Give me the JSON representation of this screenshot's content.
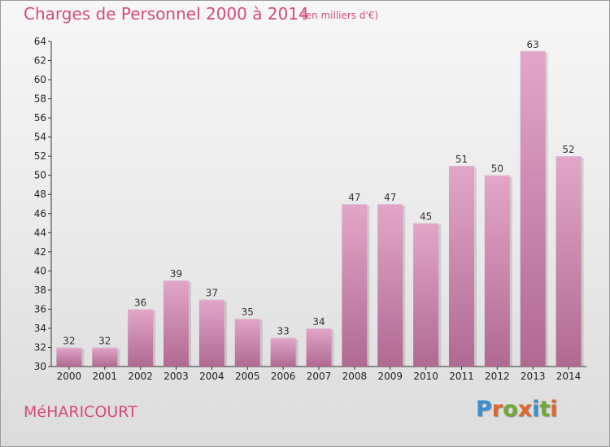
{
  "header": {
    "title": "Charges de Personnel 2000 à 2014",
    "subtitle": "(en milliers d'€)"
  },
  "footer": {
    "commune": "MéHARICOURT",
    "logo_text": "Proxiti"
  },
  "colors": {
    "title": "#d54a7a",
    "bar_top": "#e2a6c8",
    "bar_bottom": "#b06a92",
    "logo_letters": [
      "#3b8fd1",
      "#e0662b",
      "#73a839",
      "#e0662b",
      "#3b8fd1",
      "#73a839",
      "#e0662b"
    ]
  },
  "chart_data": {
    "type": "bar",
    "categories": [
      "2000",
      "2001",
      "2002",
      "2003",
      "2004",
      "2005",
      "2006",
      "2007",
      "2008",
      "2009",
      "2010",
      "2011",
      "2012",
      "2013",
      "2014"
    ],
    "values": [
      32,
      32,
      36,
      39,
      37,
      35,
      33,
      34,
      47,
      47,
      45,
      51,
      50,
      63,
      52
    ],
    "title": "Charges de Personnel 2000 à 2014",
    "ylabel": "",
    "xlabel": "",
    "ylim": [
      30,
      64
    ],
    "yticks": [
      30,
      32,
      34,
      36,
      38,
      40,
      42,
      44,
      46,
      48,
      50,
      52,
      54,
      56,
      58,
      60,
      62,
      64
    ],
    "data_labels": true,
    "grid": false
  }
}
